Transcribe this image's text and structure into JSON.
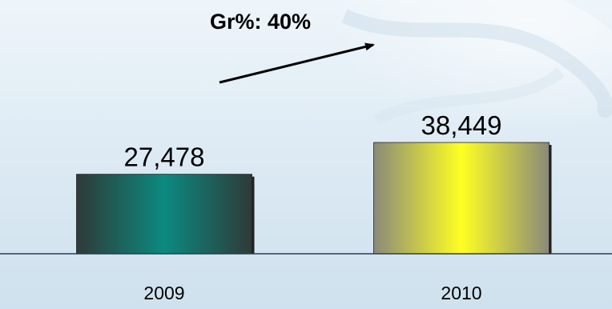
{
  "chart_data": {
    "type": "bar",
    "categories": [
      "2009",
      "2010"
    ],
    "values": [
      27478,
      38449
    ],
    "value_labels": [
      "27,478",
      "38,449"
    ],
    "annotation": "Gr%: 40%",
    "ylim": [
      0,
      38449
    ],
    "grid": false,
    "colors": {
      "bar_2009_center": "#0b8a80",
      "bar_2009_edge": "#2f3a38",
      "bar_2010_center": "#ffff22",
      "bar_2010_edge": "#8a8a7a",
      "axis": "#2a3f55"
    }
  }
}
